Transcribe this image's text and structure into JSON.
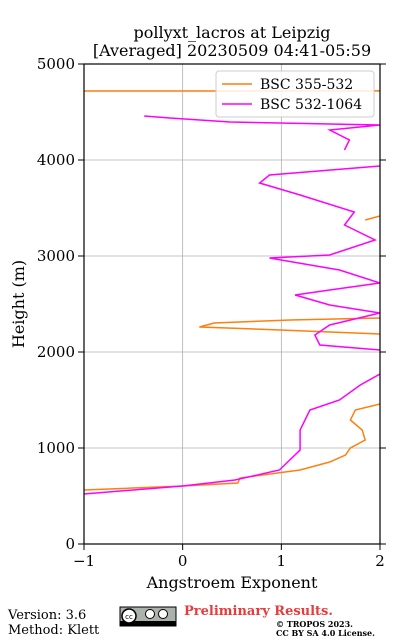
{
  "chart_data": {
    "type": "line",
    "title": "pollyxt_lacros at Leipzig",
    "subtitle": "[Averaged] 20230509 04:41-05:59",
    "x_label": "Angstroem Exponent",
    "y_label": "Height (m)",
    "xlim": [
      -1,
      2
    ],
    "xticks": [
      {
        "value": -1,
        "label": "−1"
      },
      0,
      1,
      2
    ],
    "ylim": [
      0,
      5000
    ],
    "yticks": [
      0,
      1000,
      2000,
      3000,
      4000,
      5000
    ],
    "grid": true,
    "legend": "upper right",
    "series": [
      {
        "name": "BSC 355-532",
        "color": "#ff7f0e",
        "x": [
          -1.0,
          0.0,
          0.56,
          0.58,
          1.19,
          1.49,
          1.65,
          1.7,
          1.85,
          1.82,
          1.7,
          1.75,
          2.0,
          null,
          2.0,
          0.99,
          0.17,
          0.32,
          1.09,
          2.0,
          null,
          1.85,
          2.0,
          null,
          -1.0,
          2.0
        ],
        "y": [
          562,
          604,
          635,
          687,
          771,
          854,
          927,
          1000,
          1083,
          1187,
          1292,
          1396,
          1458,
          null,
          2187,
          2229,
          2260,
          2302,
          2333,
          2354,
          null,
          3375,
          3417,
          null,
          4719,
          4720
        ]
      },
      {
        "name": "BSC 532-1064",
        "color": "#ff00ff",
        "x": [
          -1.0,
          0.0,
          0.53,
          0.98,
          1.19,
          1.19,
          1.29,
          1.59,
          1.8,
          2.0,
          null,
          2.0,
          1.39,
          1.34,
          1.49,
          2.0,
          1.49,
          1.14,
          1.49,
          2.0,
          1.59,
          0.88,
          1.49,
          1.95,
          1.64,
          1.74,
          1.19,
          0.78,
          0.88,
          2.0,
          null,
          1.64,
          1.69,
          1.49,
          2.0,
          0.48,
          -0.13,
          -0.39
        ],
        "y": [
          521,
          604,
          667,
          771,
          979,
          1187,
          1396,
          1500,
          1656,
          1771,
          null,
          2021,
          2073,
          2177,
          2281,
          2406,
          2490,
          2594,
          2646,
          2719,
          2854,
          2979,
          3010,
          3167,
          3323,
          3458,
          3635,
          3760,
          3844,
          3938,
          null,
          4104,
          4208,
          4313,
          4365,
          4396,
          4438,
          4458
        ]
      }
    ]
  },
  "footer": {
    "version": "Version: 3.6",
    "method": "Method: Klett",
    "notice": "Preliminary Results.",
    "copyright": "© TROPOS 2023.",
    "license": "CC BY SA 4.0 License."
  }
}
